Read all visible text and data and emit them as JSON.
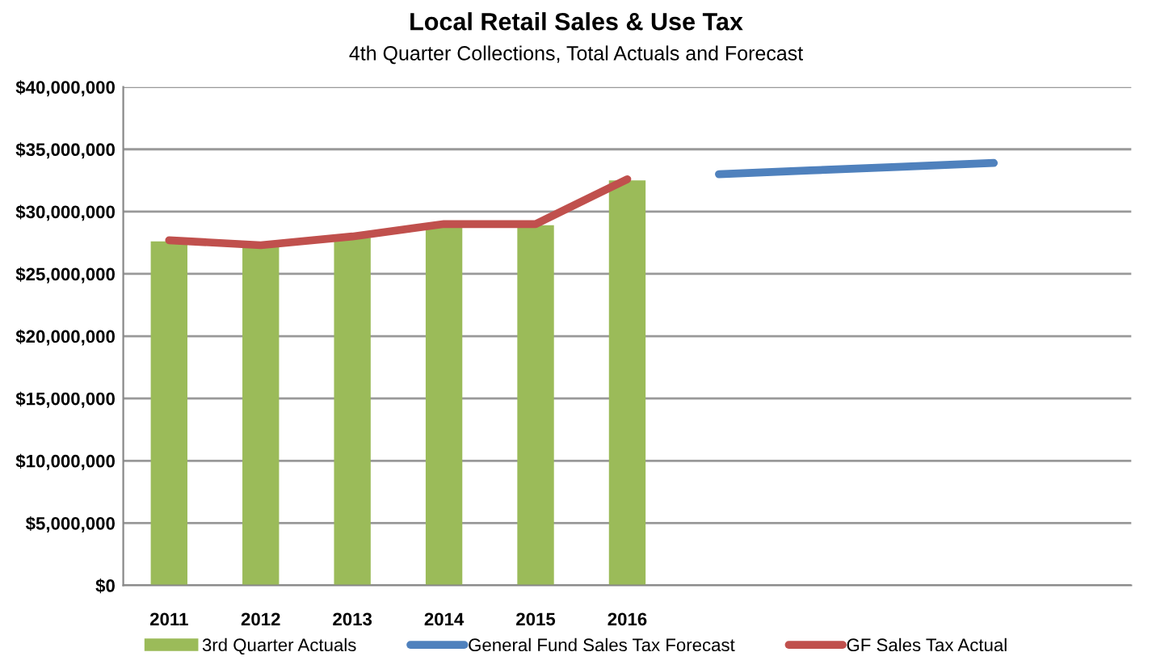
{
  "chart_data": {
    "type": "bar",
    "title": "Local Retail Sales & Use Tax",
    "subtitle": "4th Quarter Collections, Total Actuals and Forecast",
    "categories": [
      "2011",
      "2012",
      "2013",
      "2014",
      "2015",
      "2016",
      null,
      null,
      null,
      null,
      null
    ],
    "series": [
      {
        "name": "3rd Quarter Actuals",
        "color": "#9bbb59",
        "values": [
          27600000,
          27300000,
          27900000,
          28900000,
          28900000,
          32500000,
          null,
          null,
          null,
          null,
          null
        ]
      },
      {
        "name": "General Fund Sales Tax Forecast",
        "type": "line",
        "color": "#4f81bd",
        "values": [
          null,
          null,
          null,
          null,
          null,
          null,
          33000000,
          33300000,
          33600000,
          33900000,
          null
        ]
      },
      {
        "name": "GF Sales Tax Actual",
        "type": "line",
        "color": "#c0504d",
        "values": [
          27700000,
          27300000,
          28000000,
          29000000,
          29000000,
          32600000,
          null,
          null,
          null,
          null,
          null
        ]
      }
    ],
    "ylim": [
      0,
      40000000
    ],
    "yticks": [
      {
        "value": 0,
        "label": "$0"
      },
      {
        "value": 5000000,
        "label": "$5,000,000"
      },
      {
        "value": 10000000,
        "label": "$10,000,000"
      },
      {
        "value": 15000000,
        "label": "$15,000,000"
      },
      {
        "value": 20000000,
        "label": "$20,000,000"
      },
      {
        "value": 25000000,
        "label": "$25,000,000"
      },
      {
        "value": 30000000,
        "label": "$30,000,000"
      },
      {
        "value": 35000000,
        "label": "$35,000,000"
      },
      {
        "value": 40000000,
        "label": "$40,000,000"
      }
    ],
    "grid": "y",
    "legend": "bottom",
    "marker": "none",
    "line_style": "solid"
  }
}
